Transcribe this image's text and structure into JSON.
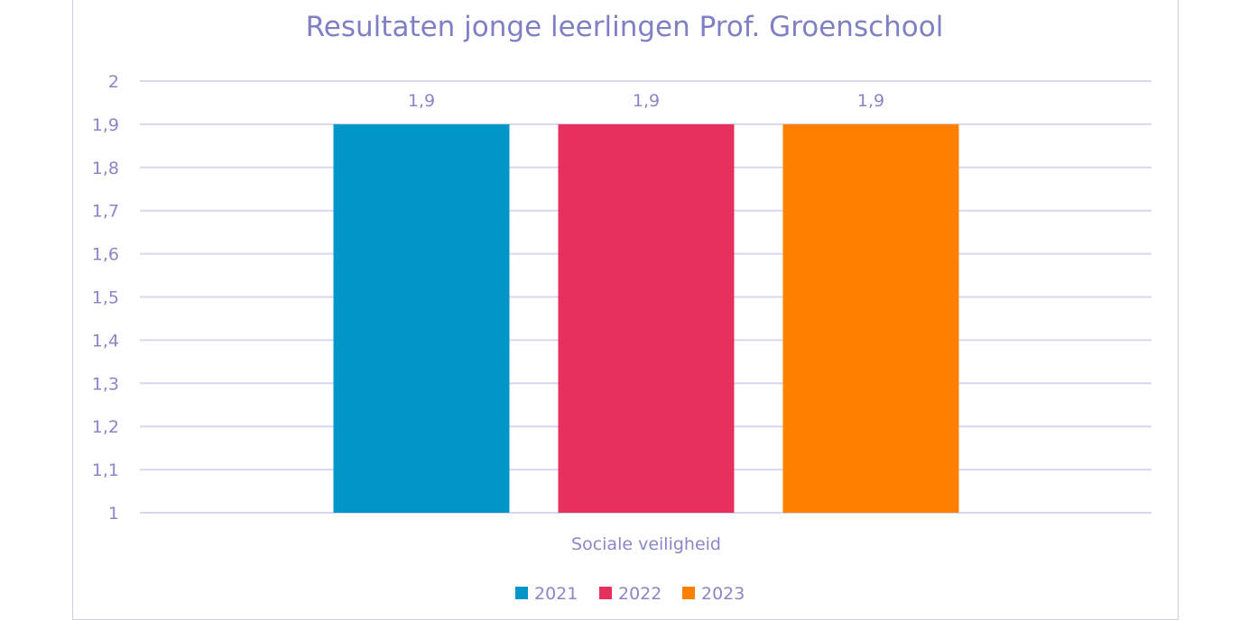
{
  "chart_data": {
    "type": "bar",
    "title": "Resultaten jonge leerlingen Prof. Groenschool",
    "categories": [
      "Sociale veiligheid"
    ],
    "series": [
      {
        "name": "2021",
        "values": [
          1.9
        ],
        "color": "#0096c8",
        "label": "1,9"
      },
      {
        "name": "2022",
        "values": [
          1.9
        ],
        "color": "#e8305e",
        "label": "1,9"
      },
      {
        "name": "2023",
        "values": [
          1.9
        ],
        "color": "#ff8000",
        "label": "1,9"
      }
    ],
    "ylim": [
      1,
      2
    ],
    "yticks": [
      {
        "value": 2,
        "label": "2"
      },
      {
        "value": 1.9,
        "label": "1,9"
      },
      {
        "value": 1.8,
        "label": "1,8"
      },
      {
        "value": 1.7,
        "label": "1,7"
      },
      {
        "value": 1.6,
        "label": "1,6"
      },
      {
        "value": 1.5,
        "label": "1,5"
      },
      {
        "value": 1.4,
        "label": "1,4"
      },
      {
        "value": 1.3,
        "label": "1,3"
      },
      {
        "value": 1.2,
        "label": "1,2"
      },
      {
        "value": 1.1,
        "label": "1,1"
      },
      {
        "value": 1,
        "label": "1"
      }
    ],
    "grid": true,
    "legend": "bottom",
    "gridline_color": "#d9d6f0"
  }
}
